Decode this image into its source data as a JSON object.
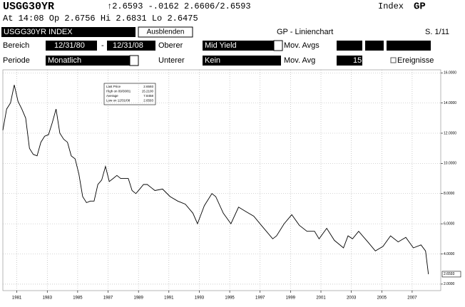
{
  "header": {
    "ticker": "USGG30YR",
    "quote": "↑2.6593 -.0162  2.6606/2.6593",
    "security_type": "Index",
    "function": "GP",
    "time_line": "At 14:08  Op 2.6756 Hi 2.6831 Lo 2.6475"
  },
  "toolbar": {
    "security": "USGG30YR INDEX",
    "hide_button": "Ausblenden",
    "chart_name": "GP - Linienchart",
    "page": "S. 1/11",
    "range_label": "Bereich",
    "start_date": "12/31/80",
    "dash": "-",
    "end_date": "12/31/08",
    "upper_label": "Oberer",
    "upper_value": "Mid Yield",
    "mov_avgs_label": "Mov. Avgs",
    "period_label": "Periode",
    "period_value": "Monatlich",
    "lower_label": "Unterer",
    "lower_value": "Kein",
    "mov_avg_label": "Mov. Avg",
    "mov_avg_value": "15",
    "events_label": "Ereignisse"
  },
  "chart_data": {
    "type": "line",
    "color": "#000000",
    "grid": true,
    "x": [
      1981.0,
      1981.25,
      1981.5,
      1981.75,
      1982.0,
      1982.25,
      1982.5,
      1982.75,
      1983.0,
      1983.25,
      1983.5,
      1983.75,
      1984.0,
      1984.25,
      1984.5,
      1984.75,
      1985.0,
      1985.25,
      1985.5,
      1985.75,
      1986.0,
      1986.25,
      1986.5,
      1986.75,
      1987.0,
      1987.25,
      1987.5,
      1987.75,
      1988.0,
      1988.25,
      1988.5,
      1988.75,
      1989.0,
      1989.25,
      1989.5,
      1989.75,
      1990.0,
      1990.25,
      1990.5,
      1990.75,
      1991.0,
      1991.5,
      1992.0,
      1992.5,
      1993.0,
      1993.5,
      1993.8,
      1994.25,
      1994.75,
      1995.0,
      1995.5,
      1996.0,
      1996.5,
      1997.0,
      1997.5,
      1998.0,
      1998.75,
      1999.0,
      1999.5,
      2000.0,
      2000.5,
      2001.0,
      2001.5,
      2001.8,
      2002.3,
      2002.8,
      2003.4,
      2003.7,
      2004.0,
      2004.4,
      2005.0,
      2005.5,
      2006.0,
      2006.5,
      2007.0,
      2007.5,
      2008.0,
      2008.5,
      2008.8,
      2008.99
    ],
    "values": [
      12.2,
      13.6,
      14.0,
      15.2,
      14.1,
      13.6,
      13.0,
      11.0,
      10.6,
      10.5,
      11.4,
      11.8,
      11.9,
      12.7,
      13.6,
      12.0,
      11.6,
      11.4,
      10.5,
      10.3,
      9.3,
      7.8,
      7.4,
      7.5,
      7.5,
      8.6,
      8.9,
      9.8,
      8.8,
      9.0,
      9.2,
      9.0,
      9.0,
      9.0,
      8.2,
      8.0,
      8.3,
      8.6,
      8.6,
      8.4,
      8.2,
      8.3,
      7.8,
      7.5,
      7.3,
      6.7,
      6.0,
      7.2,
      8.0,
      7.8,
      6.7,
      6.0,
      7.1,
      6.8,
      6.5,
      5.9,
      5.0,
      5.2,
      6.0,
      6.6,
      5.9,
      5.5,
      5.5,
      5.0,
      5.7,
      4.9,
      4.4,
      5.2,
      5.0,
      5.5,
      4.8,
      4.2,
      4.5,
      5.2,
      4.8,
      5.1,
      4.4,
      4.6,
      4.2,
      2.66
    ],
    "xlim": [
      1981.0,
      2009.8
    ],
    "ylim": [
      1.57,
      16.2
    ],
    "xticks": [
      {
        "value": 1981.92,
        "label": "1981"
      },
      {
        "value": 1983.92,
        "label": "1983"
      },
      {
        "value": 1985.92,
        "label": "1985"
      },
      {
        "value": 1987.92,
        "label": "1987"
      },
      {
        "value": 1989.92,
        "label": "1989"
      },
      {
        "value": 1991.92,
        "label": "1991"
      },
      {
        "value": 1993.92,
        "label": "1993"
      },
      {
        "value": 1995.92,
        "label": "1995"
      },
      {
        "value": 1997.92,
        "label": "1997"
      },
      {
        "value": 1999.92,
        "label": "1999"
      },
      {
        "value": 2001.92,
        "label": "2001"
      },
      {
        "value": 2003.92,
        "label": "2003"
      },
      {
        "value": 2005.92,
        "label": "2005"
      },
      {
        "value": 2007.92,
        "label": "2007"
      }
    ],
    "yticks": [
      {
        "value": 2,
        "label": "2.0000"
      },
      {
        "value": 4,
        "label": "4.0000"
      },
      {
        "value": 6,
        "label": "6.0000"
      },
      {
        "value": 8,
        "label": "8.0000"
      },
      {
        "value": 10,
        "label": "10.0000"
      },
      {
        "value": 12,
        "label": "12.0000"
      },
      {
        "value": 14,
        "label": "14.0000"
      },
      {
        "value": 16,
        "label": "16.0000"
      }
    ],
    "end_marker": {
      "value": 2.6593,
      "label": "2.6593"
    },
    "stats": [
      {
        "label": "Last Price",
        "value": "2.6593"
      },
      {
        "label": "High on 09/30/81",
        "value": "15.2100"
      },
      {
        "label": "Average",
        "value": "7.8458"
      },
      {
        "label": "Low on 12/31/08",
        "value": "2.6593"
      }
    ]
  }
}
